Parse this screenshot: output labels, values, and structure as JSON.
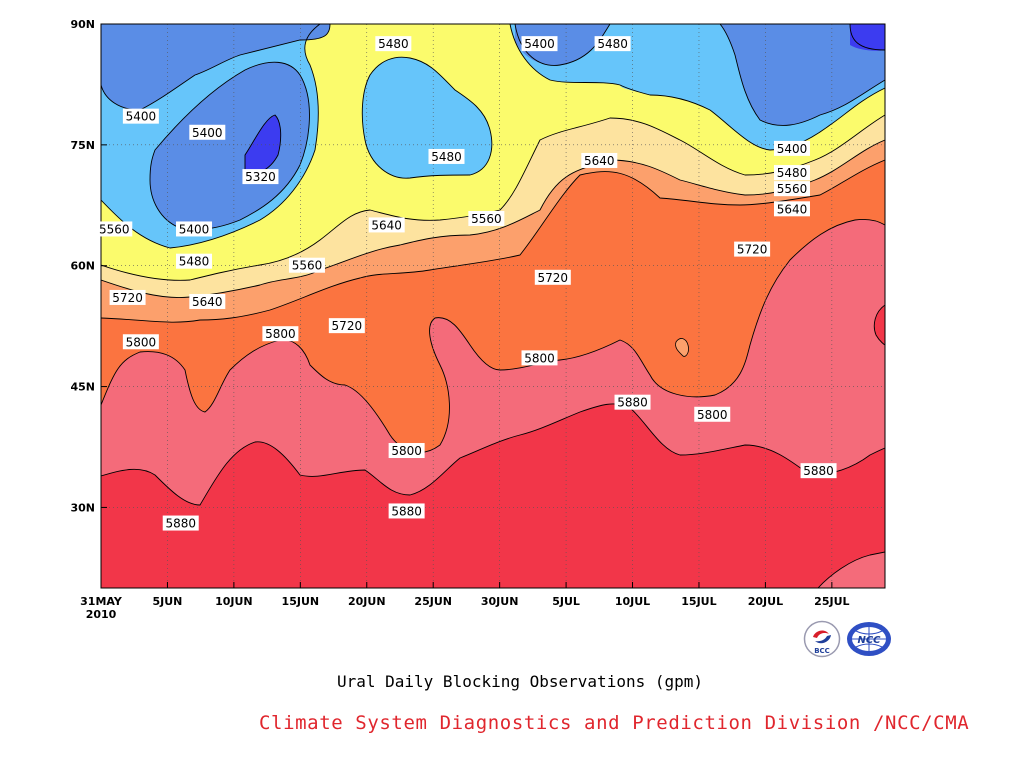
{
  "chart_data": {
    "type": "contour",
    "title": "Ural Daily Blocking Observations (gpm)",
    "units": "gpm",
    "x_ticks": [
      "31MAY",
      "5JUN",
      "10JUN",
      "15JUN",
      "20JUN",
      "25JUN",
      "30JUN",
      "5JUL",
      "10JUL",
      "15JUL",
      "20JUL",
      "25JUL"
    ],
    "x_year": "2010",
    "x_tick_days": [
      0,
      5,
      10,
      15,
      20,
      25,
      30,
      35,
      40,
      45,
      50,
      55
    ],
    "xlim_days": [
      0,
      59
    ],
    "y_ticks": [
      "30N",
      "45N",
      "60N",
      "75N",
      "90N"
    ],
    "y_tick_values": [
      30,
      45,
      60,
      75,
      90
    ],
    "ylim": [
      20,
      90
    ],
    "grid": "dotted",
    "contour_levels": [
      5320,
      5400,
      5480,
      5560,
      5640,
      5720,
      5800,
      5880
    ],
    "fill_colors": {
      "below_5320": "#3c3cf0",
      "5320_5400": "#5a8de6",
      "5400_5480": "#66c5fa",
      "5480_5560": "#fbfb6c",
      "5560_5640": "#fde39f",
      "5640_5720": "#fca06c",
      "5720_5800": "#fb7440",
      "5800_5880": "#f46b7a",
      "above_5880": "#f23649"
    },
    "contour_labels": [
      {
        "value": "5400",
        "day": 3,
        "lat": 78.5
      },
      {
        "value": "5400",
        "day": 8,
        "lat": 76.5
      },
      {
        "value": "5320",
        "day": 12,
        "lat": 71
      },
      {
        "value": "5400",
        "day": 7,
        "lat": 64.5
      },
      {
        "value": "5480",
        "day": 22,
        "lat": 87.5
      },
      {
        "value": "5400",
        "day": 33,
        "lat": 87.5
      },
      {
        "value": "5480",
        "day": 38.5,
        "lat": 87.5
      },
      {
        "value": "5480",
        "day": 26,
        "lat": 73.5
      },
      {
        "value": "5400",
        "day": 52,
        "lat": 74.5
      },
      {
        "value": "5560",
        "day": 1,
        "lat": 64.5
      },
      {
        "value": "5480",
        "day": 7,
        "lat": 60.5
      },
      {
        "value": "5560",
        "day": 15.5,
        "lat": 60
      },
      {
        "value": "5640",
        "day": 8,
        "lat": 55.5
      },
      {
        "value": "5640",
        "day": 21.5,
        "lat": 65
      },
      {
        "value": "5560",
        "day": 29,
        "lat": 65.8
      },
      {
        "value": "5640",
        "day": 37.5,
        "lat": 73
      },
      {
        "value": "5480",
        "day": 52,
        "lat": 71.5
      },
      {
        "value": "5560",
        "day": 52,
        "lat": 69.5
      },
      {
        "value": "5640",
        "day": 52,
        "lat": 67
      },
      {
        "value": "5720",
        "day": 2,
        "lat": 56
      },
      {
        "value": "5720",
        "day": 18.5,
        "lat": 52.5
      },
      {
        "value": "5720",
        "day": 34,
        "lat": 58.5
      },
      {
        "value": "5720",
        "day": 49,
        "lat": 62
      },
      {
        "value": "5800",
        "day": 3,
        "lat": 50.5
      },
      {
        "value": "5800",
        "day": 13.5,
        "lat": 51.5
      },
      {
        "value": "5800",
        "day": 33,
        "lat": 48.5
      },
      {
        "value": "5800",
        "day": 23,
        "lat": 37
      },
      {
        "value": "5880",
        "day": 40,
        "lat": 43
      },
      {
        "value": "5800",
        "day": 46,
        "lat": 41.5
      },
      {
        "value": "5880",
        "day": 54,
        "lat": 34.5
      },
      {
        "value": "5880",
        "day": 6,
        "lat": 28
      },
      {
        "value": "5880",
        "day": 23,
        "lat": 29.5
      }
    ]
  },
  "footer": {
    "title": "Ural Daily Blocking Observations (gpm)",
    "credit": "Climate System Diagnostics and Prediction Division /NCC/CMA"
  },
  "logos": {
    "bcc": {
      "text": "BCC",
      "icon": "bcc-logo-icon"
    },
    "ncc": {
      "text": "NCC",
      "icon": "ncc-logo-icon"
    }
  }
}
